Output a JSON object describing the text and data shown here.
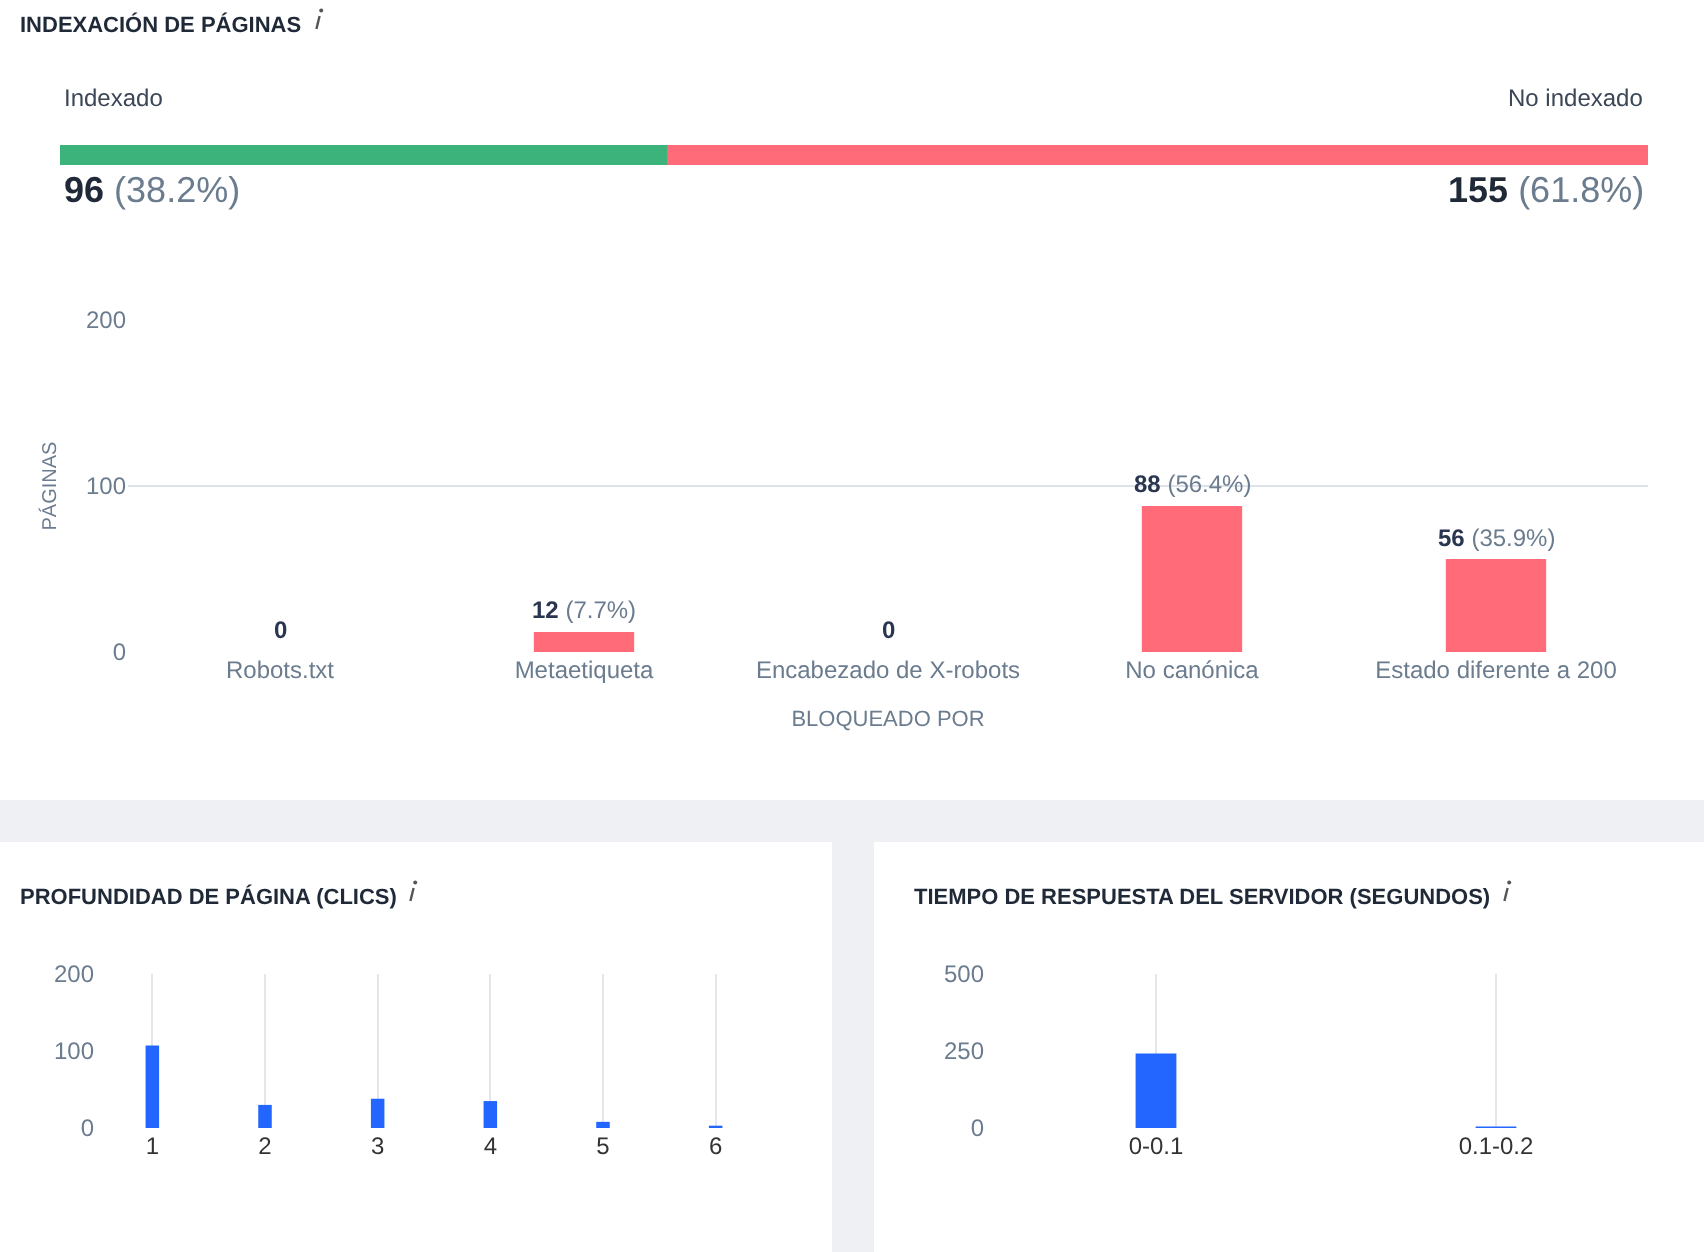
{
  "chart_data": [
    {
      "type": "bar",
      "title": "INDEXACIÓN DE PÁGINAS",
      "orientation": "horizontal",
      "stacked": true,
      "categories": [
        null
      ],
      "tick_labels": false,
      "series": [
        {
          "name": "Indexado",
          "color": "#3cb37a",
          "values": [
            96
          ],
          "value_labels": [
            "96 (38.2%)"
          ]
        },
        {
          "name": "No indexado",
          "color": "#ff6b78",
          "values": [
            155
          ],
          "value_labels": [
            "155 (61.8%)"
          ]
        }
      ]
    },
    {
      "type": "bar",
      "categories": [
        "Robots.txt",
        "Metaetiqueta",
        "Encabezado de X-robots",
        "No canónica",
        "Estado diferente a 200"
      ],
      "values": [
        0,
        12,
        0,
        88,
        56
      ],
      "value_labels": [
        "0",
        "12 (7.7%)",
        "0",
        "88 (56.4%)",
        "56 (35.9%)"
      ],
      "color": "#ff6b78",
      "xlabel": "BLOQUEADO POR",
      "ylabel": "PÁGINAS",
      "ylim": [
        0,
        200
      ],
      "yticks": [
        0,
        100,
        200
      ],
      "grid": "y"
    },
    {
      "type": "bar",
      "title": "PROFUNDIDAD DE PÁGINA (CLICS)",
      "categories": [
        "1",
        "2",
        "3",
        "4",
        "5",
        "6"
      ],
      "values": [
        107,
        30,
        38,
        35,
        8,
        3
      ],
      "color": "#2266ff",
      "ylim": [
        0,
        200
      ],
      "yticks": [
        0,
        100,
        200
      ],
      "grid": "x"
    },
    {
      "type": "bar",
      "title": "TIEMPO DE RESPUESTA DEL SERVIDOR (SEGUNDOS)",
      "categories": [
        "0-0.1",
        "0.1-0.2"
      ],
      "values": [
        242,
        5
      ],
      "color": "#2266ff",
      "ylim": [
        0,
        500
      ],
      "yticks": [
        0,
        250,
        500
      ],
      "grid": "x"
    }
  ]
}
